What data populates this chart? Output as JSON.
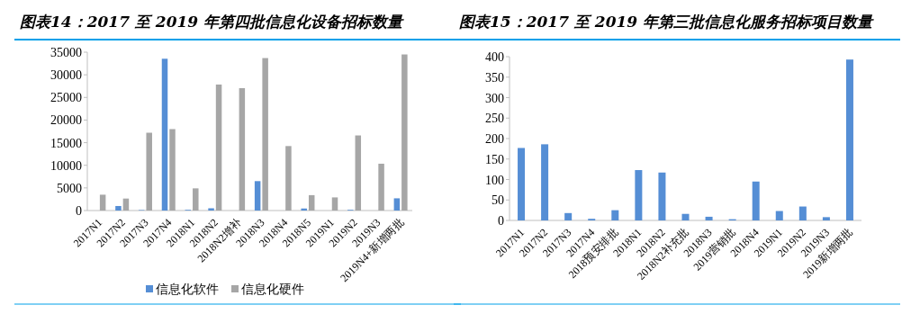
{
  "chart_data": [
    {
      "type": "bar",
      "title": "图表14：2017 至 2019 年第四批信息化设备招标数量",
      "categories": [
        "2017N1",
        "2017N2",
        "2017N3",
        "2017N4",
        "2018N1",
        "2018N2",
        "2018N2增补",
        "2018N3",
        "2018N4",
        "2018N5",
        "2019N1",
        "2019N2",
        "2019N3",
        "2019N4+新增两批"
      ],
      "series": [
        {
          "name": "信息化软件",
          "color": "#558ed5",
          "values": [
            0,
            1000,
            100,
            33550,
            150,
            500,
            0,
            6500,
            0,
            450,
            0,
            150,
            0,
            2700
          ]
        },
        {
          "name": "信息化硬件",
          "color": "#a6a6a6",
          "values": [
            3500,
            2650,
            17200,
            18000,
            4900,
            27850,
            27050,
            33700,
            14250,
            3400,
            2900,
            16600,
            10350,
            34500
          ]
        }
      ],
      "ylim": [
        0,
        35000
      ],
      "yticks": [
        0,
        5000,
        10000,
        15000,
        20000,
        25000,
        30000,
        35000
      ],
      "legend": "bottom"
    },
    {
      "type": "bar",
      "title": "图表15：2017 至 2019 年第三批信息化服务招标项目数量",
      "categories": [
        "2017N1",
        "2017N2",
        "2017N3",
        "2017N4",
        "2018预安排批",
        "2018N1",
        "2018N2",
        "2018N2补充批",
        "2018N3",
        "2019营销批",
        "2018N4",
        "2019N1",
        "2019N2",
        "2019N3",
        "2019新增两批"
      ],
      "series": [
        {
          "color": "#558ed5",
          "values": [
            177,
            186,
            18,
            4,
            25,
            123,
            117,
            16,
            9,
            3,
            95,
            23,
            34,
            8,
            393
          ]
        }
      ],
      "ylim": [
        0,
        400
      ],
      "yticks": [
        0,
        50,
        100,
        150,
        200,
        250,
        300,
        350,
        400
      ]
    }
  ]
}
